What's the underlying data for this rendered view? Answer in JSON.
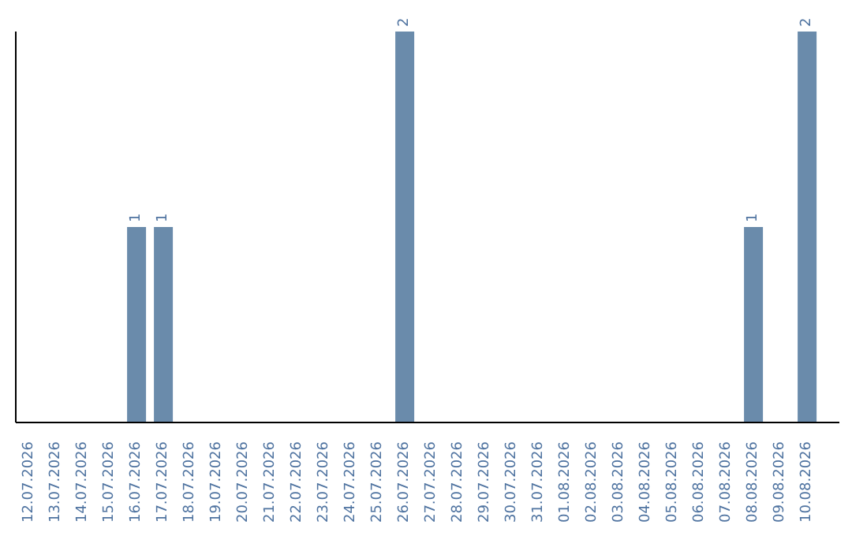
{
  "chart_data": {
    "type": "bar",
    "categories": [
      "12.07.2026",
      "13.07.2026",
      "14.07.2026",
      "15.07.2026",
      "16.07.2026",
      "17.07.2026",
      "18.07.2026",
      "19.07.2026",
      "20.07.2026",
      "21.07.2026",
      "22.07.2026",
      "23.07.2026",
      "24.07.2026",
      "25.07.2026",
      "26.07.2026",
      "27.07.2026",
      "28.07.2026",
      "29.07.2026",
      "30.07.2026",
      "31.07.2026",
      "01.08.2026",
      "02.08.2026",
      "03.08.2026",
      "04.08.2026",
      "05.08.2026",
      "06.08.2026",
      "07.08.2026",
      "08.08.2026",
      "09.08.2026",
      "10.08.2026"
    ],
    "values": [
      0,
      0,
      0,
      0,
      1,
      1,
      0,
      0,
      0,
      0,
      0,
      0,
      0,
      0,
      2,
      0,
      0,
      0,
      0,
      0,
      0,
      0,
      0,
      0,
      0,
      0,
      0,
      1,
      0,
      2
    ],
    "value_labels": [
      null,
      null,
      null,
      null,
      "1",
      "1",
      null,
      null,
      null,
      null,
      null,
      null,
      null,
      null,
      "2",
      null,
      null,
      null,
      null,
      null,
      null,
      null,
      null,
      null,
      null,
      null,
      null,
      "1",
      null,
      "2"
    ],
    "color": "#6a8bab",
    "tick_labels": "x",
    "grid": false,
    "legend": false
  }
}
